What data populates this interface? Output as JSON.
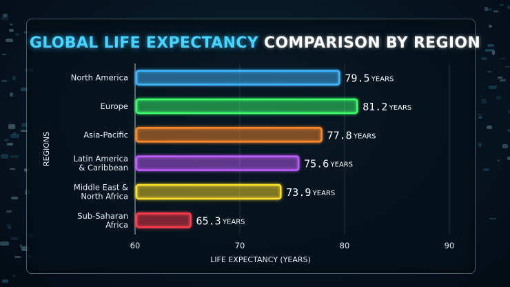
{
  "title_part1": "GLOBAL LIFE EXPECTANCY",
  "title_part2": "COMPARISON BY REGION",
  "chart_data": {
    "type": "bar",
    "orientation": "horizontal",
    "title": "GLOBAL LIFE EXPECTANCY COMPARISON BY REGION",
    "xlabel": "LIFE EXPECTANCY (YEARS)",
    "ylabel": "REGIONS",
    "xlim": [
      60,
      90
    ],
    "xticks": [
      60,
      70,
      80,
      90
    ],
    "value_unit": "YEARS",
    "grid": true,
    "categories": [
      [
        "North America"
      ],
      [
        "Europe"
      ],
      [
        "Asia-Pacific"
      ],
      [
        "Latin America",
        "& Caribbean"
      ],
      [
        "Middle East &",
        "North Africa"
      ],
      [
        "Sub-Saharan",
        "Africa"
      ]
    ],
    "values": [
      79.5,
      81.2,
      77.8,
      75.6,
      73.9,
      65.3
    ],
    "value_labels": [
      "79.5",
      "81.2",
      "77.8",
      "75.6",
      "73.9",
      "65.3"
    ],
    "colors": [
      "#3fb8ff",
      "#3dff6a",
      "#ff8a2a",
      "#c35cff",
      "#ffe02a",
      "#ff3d4d"
    ]
  }
}
